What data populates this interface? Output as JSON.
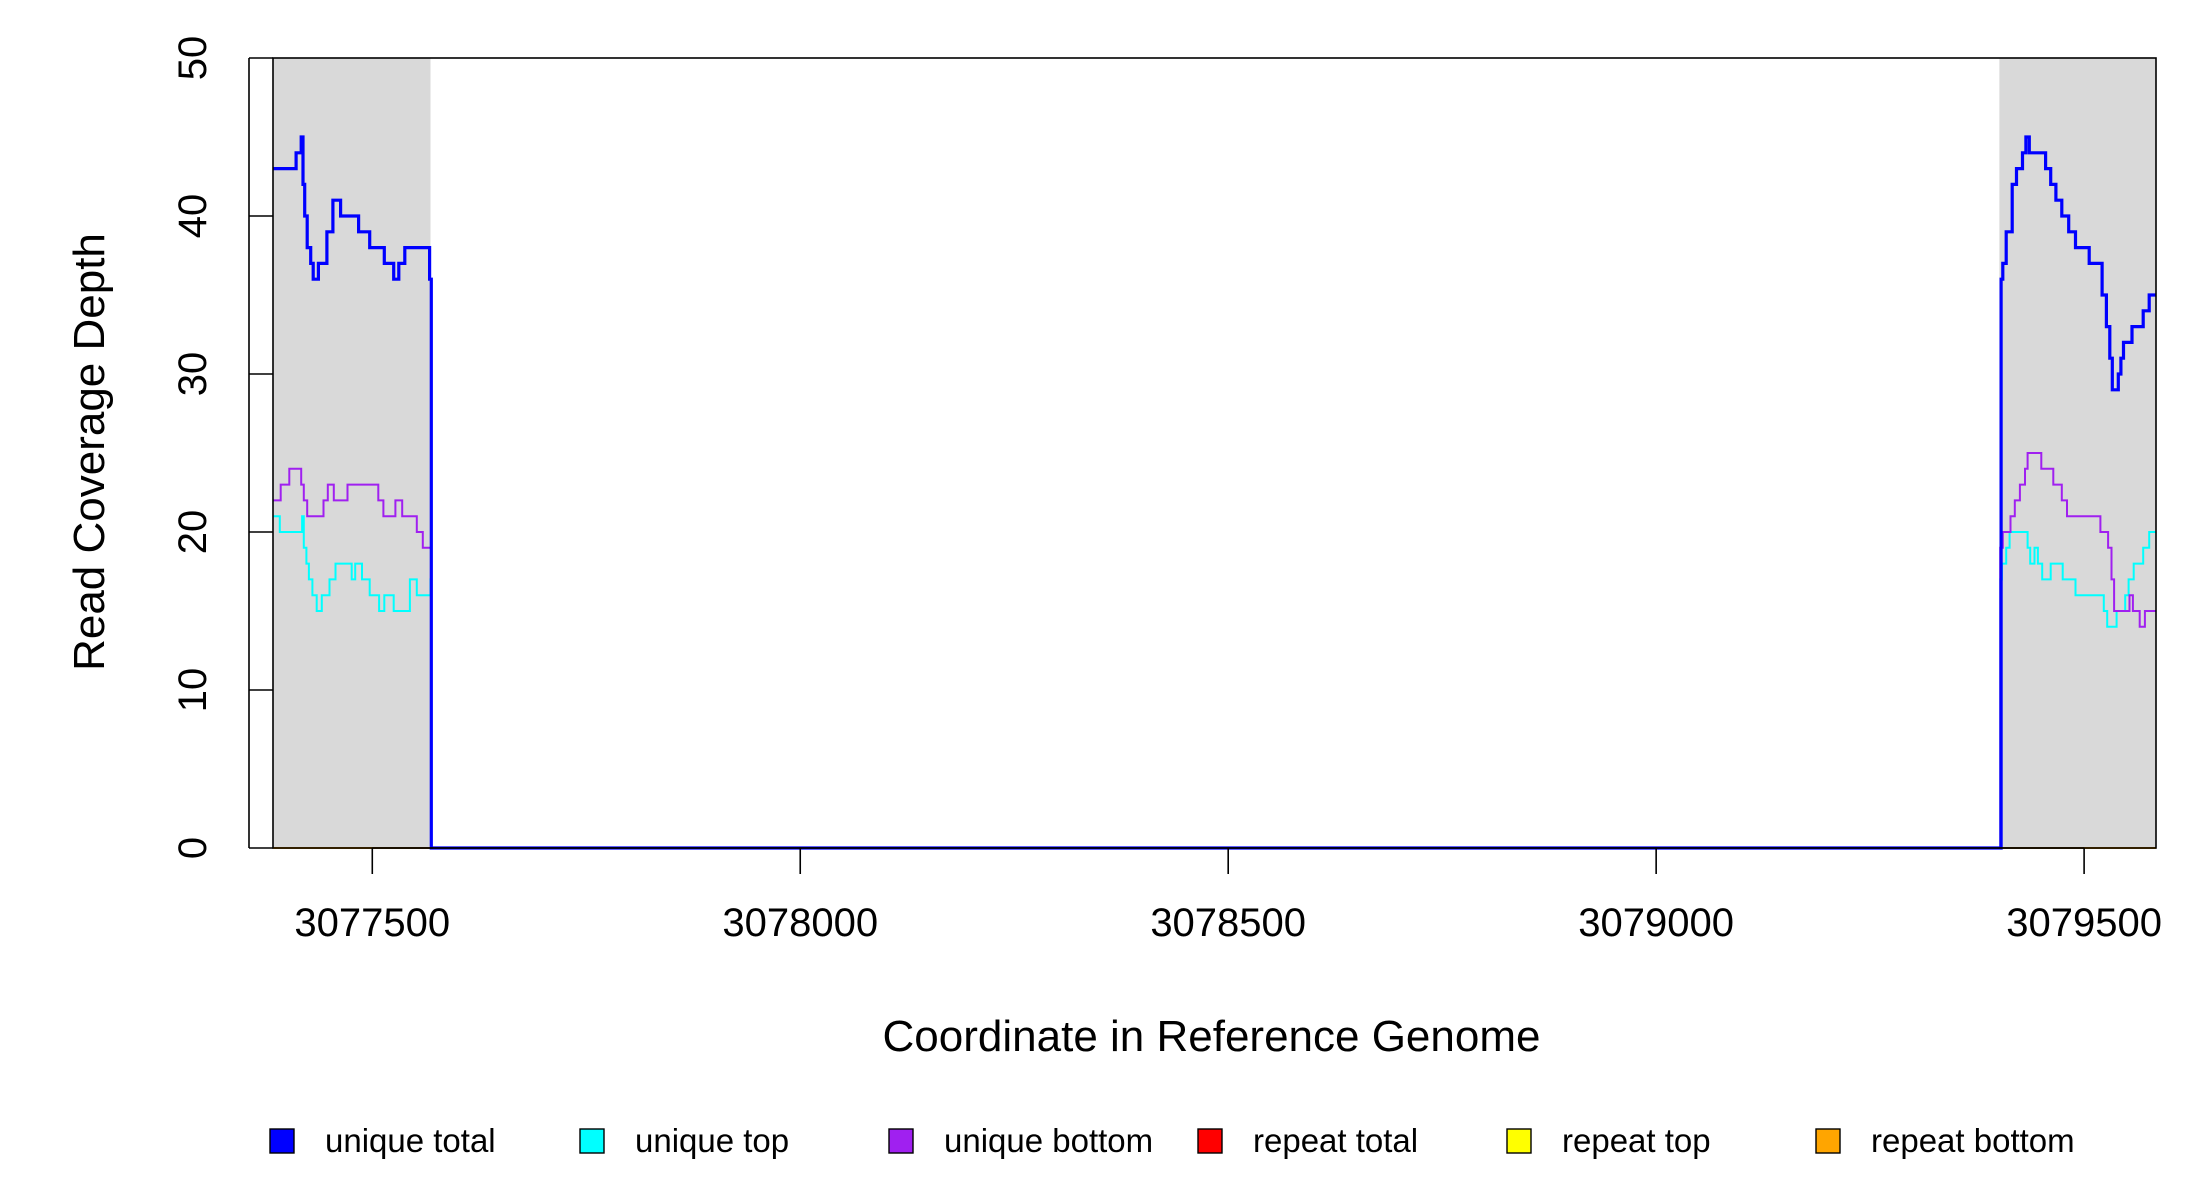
{
  "chart_data": {
    "type": "line",
    "line_style": "step",
    "xlabel": "Coordinate in Reference Genome",
    "ylabel": "Read Coverage Depth",
    "xlim": [
      3077384,
      3079584
    ],
    "ylim": [
      0,
      50
    ],
    "x_ticks": [
      {
        "value": 3077500,
        "label": "3077500"
      },
      {
        "value": 3078000,
        "label": "3078000"
      },
      {
        "value": 3078500,
        "label": "3078500"
      },
      {
        "value": 3079000,
        "label": "3079000"
      },
      {
        "value": 3079500,
        "label": "3079500"
      }
    ],
    "y_ticks": [
      {
        "value": 0,
        "label": "0"
      },
      {
        "value": 10,
        "label": "10"
      },
      {
        "value": 20,
        "label": "20"
      },
      {
        "value": 30,
        "label": "30"
      },
      {
        "value": 40,
        "label": "40"
      },
      {
        "value": 50,
        "label": "50"
      }
    ],
    "shaded_regions": [
      {
        "x0": 3077384,
        "x1": 3077568,
        "color": "#d9d9d9"
      },
      {
        "x0": 3079401,
        "x1": 3079584,
        "color": "#d9d9d9"
      }
    ],
    "grid": false,
    "legend_position": "bottom",
    "series": [
      {
        "name": "repeat total",
        "color": "#ff0000",
        "x": [
          3077384,
          3079584
        ],
        "y": [
          0,
          0
        ]
      },
      {
        "name": "repeat top",
        "color": "#ffff00",
        "x": [
          3077384,
          3079584
        ],
        "y": [
          0,
          0
        ]
      },
      {
        "name": "repeat bottom",
        "color": "#ffa500",
        "x": [
          3077384,
          3079584
        ],
        "y": [
          0,
          0
        ]
      },
      {
        "name": "unique top",
        "color": "#00ffff",
        "x": [
          3077384,
          3077392,
          3077395,
          3077418,
          3077420,
          3077423,
          3077426,
          3077430,
          3077435,
          3077441,
          3077450,
          3077457,
          3077476,
          3077480,
          3077488,
          3077497,
          3077508,
          3077514,
          3077525,
          3077544,
          3077552,
          3077568,
          3077569,
          3079401,
          3079402,
          3079404,
          3079409,
          3079413,
          3079420,
          3079434,
          3079437,
          3079442,
          3079446,
          3079451,
          3079461,
          3079475,
          3079484,
          3079490,
          3079496,
          3079509,
          3079523,
          3079527,
          3079530,
          3079538,
          3079548,
          3079552,
          3079558,
          3079569,
          3079576,
          3079584
        ],
        "y": [
          21,
          20,
          20,
          21,
          19,
          18,
          17,
          16,
          15,
          16,
          17,
          18,
          17,
          18,
          17,
          16,
          15,
          16,
          15,
          17,
          16,
          17,
          0,
          0,
          17,
          18,
          19,
          20,
          20,
          19,
          18,
          19,
          18,
          17,
          18,
          17,
          17,
          16,
          16,
          16,
          15,
          14,
          14,
          15,
          16,
          17,
          18,
          19,
          20,
          20
        ]
      },
      {
        "name": "unique bottom",
        "color": "#a020f0",
        "x": [
          3077384,
          3077393,
          3077403,
          3077417,
          3077420,
          3077424,
          3077443,
          3077448,
          3077455,
          3077471,
          3077484,
          3077507,
          3077513,
          3077527,
          3077535,
          3077542,
          3077552,
          3077559,
          3077568,
          3077569,
          3079401,
          3079402,
          3079405,
          3079414,
          3079419,
          3079425,
          3079431,
          3079434,
          3079437,
          3079442,
          3079445,
          3079450,
          3079454,
          3079464,
          3079474,
          3079480,
          3079485,
          3079491,
          3079501,
          3079519,
          3079528,
          3079532,
          3079535,
          3079544,
          3079553,
          3079557,
          3079565,
          3079571,
          3079576,
          3079584
        ],
        "y": [
          22,
          23,
          24,
          23,
          22,
          21,
          22,
          23,
          22,
          23,
          23,
          22,
          21,
          22,
          21,
          21,
          20,
          19,
          19,
          0,
          0,
          19,
          20,
          21,
          22,
          23,
          24,
          25,
          25,
          25,
          25,
          24,
          24,
          23,
          22,
          21,
          21,
          21,
          21,
          20,
          19,
          17,
          15,
          15,
          16,
          15,
          14,
          15,
          15,
          15
        ]
      },
      {
        "name": "unique total",
        "color": "#0000ff",
        "x": [
          3077384,
          3077402,
          3077411,
          3077417,
          3077419,
          3077421,
          3077424,
          3077428,
          3077431,
          3077437,
          3077447,
          3077454,
          3077463,
          3077476,
          3077484,
          3077494,
          3077497,
          3077514,
          3077525,
          3077531,
          3077538,
          3077548,
          3077557,
          3077567,
          3077569,
          3079401,
          3079403,
          3079405,
          3079409,
          3079416,
          3079421,
          3079428,
          3079432,
          3079436,
          3079440,
          3079444,
          3079449,
          3079455,
          3079461,
          3079467,
          3079474,
          3079482,
          3079490,
          3079497,
          3079506,
          3079521,
          3079526,
          3079530,
          3079533,
          3079536,
          3079540,
          3079543,
          3079546,
          3079556,
          3079569,
          3079576,
          3079584
        ],
        "y": [
          43,
          43,
          44,
          45,
          42,
          40,
          38,
          37,
          36,
          37,
          39,
          41,
          40,
          40,
          39,
          39,
          38,
          37,
          36,
          37,
          38,
          38,
          38,
          36,
          0,
          0,
          36,
          37,
          39,
          42,
          43,
          44,
          45,
          44,
          44,
          44,
          44,
          43,
          42,
          41,
          40,
          39,
          38,
          38,
          37,
          35,
          33,
          31,
          29,
          29,
          30,
          31,
          32,
          33,
          34,
          35,
          35
        ]
      }
    ],
    "legend": [
      {
        "label": "unique total",
        "color": "#0000ff"
      },
      {
        "label": "unique top",
        "color": "#00ffff"
      },
      {
        "label": "unique bottom",
        "color": "#a020f0"
      },
      {
        "label": "repeat total",
        "color": "#ff0000"
      },
      {
        "label": "repeat top",
        "color": "#ffff00"
      },
      {
        "label": "repeat bottom",
        "color": "#ffa500"
      }
    ]
  }
}
